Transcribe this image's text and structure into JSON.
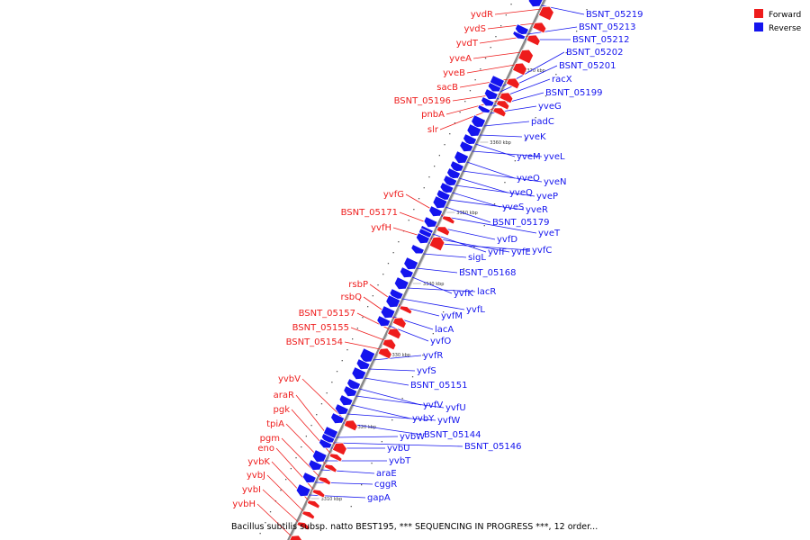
{
  "legend": [
    {
      "name": "Forward",
      "color": "#ee1c1c"
    },
    {
      "name": "Reverse",
      "color": "#1414ee"
    }
  ],
  "caption": "Bacillus subtilis subsp. natto BEST195, *** SEQUENCING IN PROGRESS ***, 12 order...",
  "colors": {
    "forward": "#ee1c1c",
    "reverse": "#1414ee",
    "axis": "#888888"
  },
  "ticks": [
    "3370 kbp",
    "3360 kbp",
    "3350 kbp",
    "3340 kbp",
    "3330 kbp",
    "3320 kbp",
    "3310 kbp"
  ],
  "forward_genes": [
    "yvdR",
    "yvdS",
    "yvdT",
    "yveA",
    "yveB",
    "sacB",
    "BSNT_05196",
    "pnbA",
    "slr",
    "yvfG",
    "BSNT_05171",
    "yvfH",
    "rsbP",
    "rsbQ",
    "BSNT_05157",
    "BSNT_05155",
    "BSNT_05154",
    "yvbV",
    "araR",
    "pgk",
    "tpiA",
    "pgm",
    "eno",
    "yvbK",
    "yvbJ",
    "yvbI",
    "yvbH"
  ],
  "reverse_genes": [
    "BSNT_05219",
    "BSNT_05213",
    "BSNT_05212",
    "BSNT_05202",
    "BSNT_05201",
    "racX",
    "BSNT_05199",
    "yveG",
    "padC",
    "yveK",
    "yveM",
    "yveL",
    "yveO",
    "yveN",
    "yveQ",
    "yveP",
    "yveS",
    "yveR",
    "BSNT_05179",
    "yveT",
    "yvfD",
    "yvfF",
    "yvfE",
    "yvfC",
    "sigL",
    "BSNT_05168",
    "yvfK",
    "lacR",
    "yvfL",
    "yvfM",
    "lacA",
    "yvfO",
    "yvfR",
    "yvfS",
    "BSNT_05151",
    "yvfV",
    "yvfU",
    "yvbY",
    "yvfW",
    "BSNT_05144",
    "yvbW",
    "BSNT_05146",
    "yvbU",
    "yvbT",
    "araE",
    "cggR",
    "gapA"
  ]
}
